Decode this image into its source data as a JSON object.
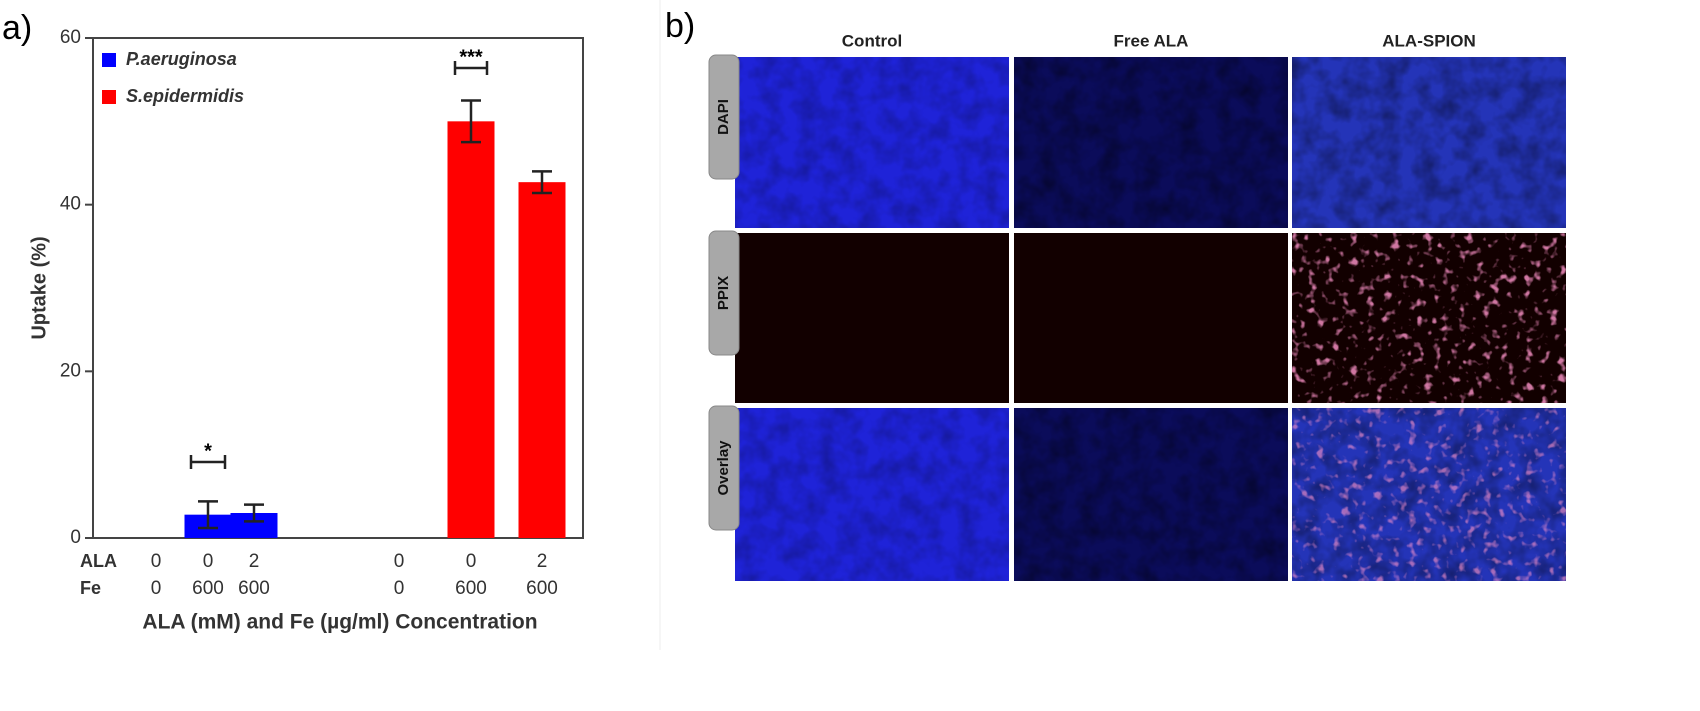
{
  "panel_labels": [
    "a)",
    "b)"
  ],
  "chart_data": {
    "type": "bar",
    "y_label": "Uptake (%)",
    "x_label": "ALA (mM) and Fe (µg/ml) Concentration",
    "row_labels": [
      "ALA",
      "Fe"
    ],
    "categories_ala": [
      "0",
      "0",
      "2",
      "0",
      "0",
      "2"
    ],
    "categories_fe": [
      "0",
      "600",
      "600",
      "0",
      "600",
      "600"
    ],
    "series": [
      {
        "name": "P.aeruginosa",
        "color": "#0000ff",
        "values": [
          0,
          2.8,
          3.0,
          null,
          null,
          null
        ],
        "errors": [
          0,
          1.6,
          1.0,
          null,
          null,
          null
        ]
      },
      {
        "name": "S.epidermidis",
        "color": "#ff0000",
        "values": [
          null,
          null,
          null,
          0,
          50,
          42.7
        ],
        "errors": [
          null,
          null,
          null,
          0,
          2.5,
          1.3
        ]
      }
    ],
    "annotations": [
      "*",
      "***"
    ],
    "ylim": [
      0,
      60
    ],
    "yticks": [
      0,
      20,
      40,
      60
    ]
  },
  "microscopy": {
    "columns": [
      "Control",
      "Free ALA",
      "ALA-SPION"
    ],
    "rows": [
      "DAPI",
      "PPIX",
      "Overlay"
    ]
  }
}
